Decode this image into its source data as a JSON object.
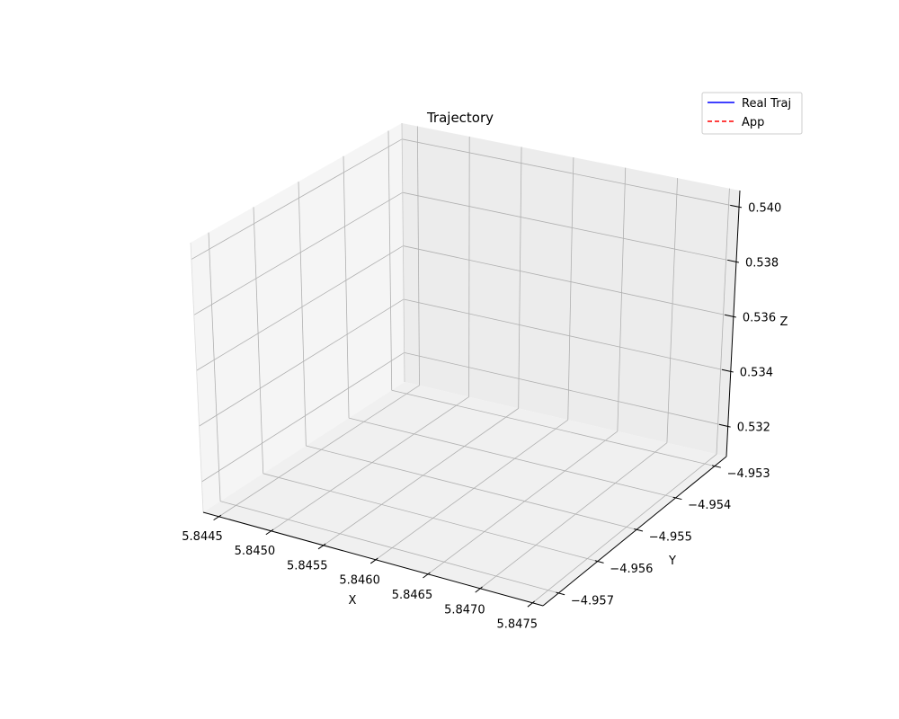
{
  "chart_data": {
    "type": "line",
    "projection": "3d",
    "title": "Trajectory",
    "xlabel": "X",
    "ylabel": "Y",
    "zlabel": "Z",
    "xlim": [
      5.84435,
      5.8476
    ],
    "ylim": [
      -4.9574,
      -4.9527
    ],
    "zlim": [
      0.5309,
      0.5406
    ],
    "x_ticks": [
      "5.8445",
      "5.8450",
      "5.8455",
      "5.8460",
      "5.8465",
      "5.8470",
      "5.8475"
    ],
    "y_ticks": [
      "−4.957",
      "−4.956",
      "−4.955",
      "−4.954",
      "−4.953"
    ],
    "z_ticks": [
      "0.532",
      "0.534",
      "0.536",
      "0.538",
      "0.540"
    ],
    "grid": true,
    "legend": {
      "position": "top-right",
      "entries": [
        {
          "label": "Real Traj",
          "color": "#0000ff",
          "style": "solid"
        },
        {
          "label": "App",
          "color": "#ff0000",
          "style": "dashed"
        }
      ]
    },
    "series": []
  }
}
